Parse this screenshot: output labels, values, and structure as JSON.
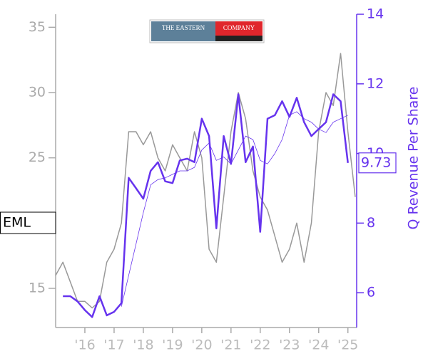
{
  "chart_data": {
    "type": "line",
    "ticker": "EML",
    "logo": {
      "left": "THE EASTERN",
      "right": "COMPANY"
    },
    "y2label": "Q Revenue Per Share",
    "xlim": [
      2015,
      2025.3
    ],
    "xticks": [
      {
        "value": 2016,
        "label": "'16"
      },
      {
        "value": 2017,
        "label": "'17"
      },
      {
        "value": 2018,
        "label": "'18"
      },
      {
        "value": 2019,
        "label": "'19"
      },
      {
        "value": 2020,
        "label": "'20"
      },
      {
        "value": 2021,
        "label": "'21"
      },
      {
        "value": 2022,
        "label": "'22"
      },
      {
        "value": 2023,
        "label": "'23"
      },
      {
        "value": 2024,
        "label": "'24"
      },
      {
        "value": 2025,
        "label": "'25"
      }
    ],
    "ylim": [
      12,
      36
    ],
    "yticks": [
      15,
      25,
      30,
      35
    ],
    "y2lim": [
      5,
      14
    ],
    "y2ticks": [
      6,
      8,
      10,
      12,
      14
    ],
    "series": [
      {
        "color": "#999999",
        "width": 1.5,
        "axis": "y",
        "x": [
          2015,
          2015.25,
          2015.5,
          2015.75,
          2016,
          2016.25,
          2016.5,
          2016.75,
          2017,
          2017.25,
          2017.5,
          2017.75,
          2018,
          2018.25,
          2018.5,
          2018.75,
          2019,
          2019.25,
          2019.5,
          2019.75,
          2020,
          2020.25,
          2020.5,
          2020.75,
          2021,
          2021.25,
          2021.5,
          2021.75,
          2022,
          2022.25,
          2022.5,
          2022.75,
          2023,
          2023.25,
          2023.5,
          2023.75,
          2024,
          2024.25,
          2024.5,
          2024.75,
          2025,
          2025.25
        ],
        "values": [
          16,
          17,
          15.5,
          14,
          14,
          13.5,
          14,
          17,
          18,
          20,
          27,
          27,
          26,
          27,
          25,
          24,
          26,
          25,
          24,
          27,
          25,
          18,
          17,
          22,
          27,
          30,
          28,
          24,
          22,
          21,
          19,
          17,
          18,
          20,
          17,
          20,
          27,
          30,
          29,
          33,
          27,
          22
        ]
      },
      {
        "color": "#6633ee",
        "width": 2.5,
        "axis": "y2",
        "x": [
          2015.25,
          2015.5,
          2015.75,
          2016,
          2016.25,
          2016.5,
          2016.75,
          2017,
          2017.25,
          2017.5,
          2017.75,
          2018,
          2018.25,
          2018.5,
          2018.75,
          2019,
          2019.25,
          2019.5,
          2019.75,
          2020,
          2020.25,
          2020.5,
          2020.75,
          2021,
          2021.25,
          2021.5,
          2021.75,
          2022,
          2022.25,
          2022.5,
          2022.75,
          2023,
          2023.25,
          2023.5,
          2023.75,
          2024,
          2024.25,
          2024.5,
          2024.75,
          2025
        ],
        "values": [
          5.9,
          5.9,
          5.75,
          5.5,
          5.3,
          5.9,
          5.35,
          5.45,
          5.7,
          9.3,
          9.0,
          8.7,
          9.5,
          9.75,
          9.2,
          9.15,
          9.8,
          9.85,
          9.75,
          11.0,
          10.5,
          7.85,
          10.5,
          9.7,
          11.7,
          9.75,
          10.2,
          7.75,
          11.0,
          11.1,
          11.5,
          11.05,
          11.6,
          10.9,
          10.5,
          10.7,
          10.9,
          11.7,
          11.5,
          9.73
        ]
      },
      {
        "color": "#6633ee",
        "width": 0.8,
        "axis": "y2",
        "x": [
          2015.25,
          2015.5,
          2015.75,
          2016,
          2016.25,
          2016.5,
          2016.75,
          2017,
          2017.25,
          2017.5,
          2017.75,
          2018,
          2018.25,
          2018.5,
          2018.75,
          2019,
          2019.25,
          2019.5,
          2019.75,
          2020,
          2020.25,
          2020.5,
          2020.75,
          2021,
          2021.25,
          2021.5,
          2021.75,
          2022,
          2022.25,
          2022.5,
          2022.75,
          2023,
          2023.25,
          2023.5,
          2023.75,
          2024,
          2024.25,
          2024.5,
          2024.75,
          2025
        ],
        "values": [
          null,
          null,
          null,
          null,
          null,
          null,
          null,
          null,
          5.6,
          6.5,
          7.4,
          8.3,
          9.1,
          9.25,
          9.3,
          9.4,
          9.5,
          9.5,
          9.6,
          10.1,
          10.3,
          9.8,
          9.9,
          9.7,
          10.1,
          10.5,
          10.4,
          9.8,
          9.7,
          10.0,
          10.4,
          11.1,
          11.2,
          11.0,
          10.9,
          10.7,
          10.6,
          10.9,
          11.0,
          11.1
        ]
      }
    ]
  }
}
